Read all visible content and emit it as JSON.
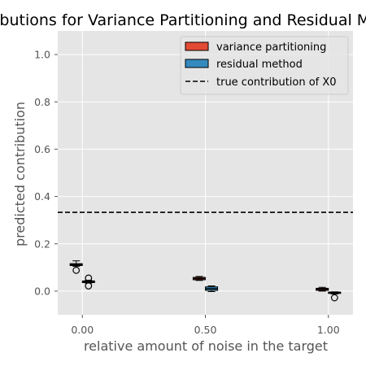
{
  "chart_data": {
    "type": "box",
    "title": "Contributions for Variance Partitioning and Residual Method",
    "xlabel": "relative amount of noise in the target",
    "ylabel": "predicted contribution",
    "xlim": [
      -0.1,
      1.1
    ],
    "ylim": [
      -0.1,
      1.1
    ],
    "x_ticks": [
      0.0,
      0.5,
      1.0
    ],
    "x_tick_labels": [
      "0.00",
      "0.50",
      "1.00"
    ],
    "y_ticks": [
      0.0,
      0.2,
      0.4,
      0.6,
      0.8,
      1.0
    ],
    "y_tick_labels": [
      "0.0",
      "0.2",
      "0.4",
      "0.6",
      "0.8",
      "1.0"
    ],
    "grid": true,
    "legend_position": "top-right",
    "colors": {
      "variance_partitioning": "#E24A33",
      "residual_method": "#348ABD",
      "plot_background": "#E5E5E5",
      "grid": "#FFFFFF"
    },
    "series": [
      {
        "name": "variance partitioning",
        "boxes": [
          {
            "x": 0.0,
            "whislo": 0.105,
            "q1": 0.108,
            "med": 0.112,
            "q3": 0.116,
            "whishi": 0.128,
            "fliers": [
              0.088
            ]
          },
          {
            "x": 0.5,
            "whislo": 0.045,
            "q1": 0.048,
            "med": 0.053,
            "q3": 0.058,
            "whishi": 0.062,
            "fliers": []
          },
          {
            "x": 1.0,
            "whislo": 0.0,
            "q1": 0.003,
            "med": 0.008,
            "q3": 0.012,
            "whishi": 0.016,
            "fliers": []
          }
        ]
      },
      {
        "name": "residual method",
        "boxes": [
          {
            "x": 0.0,
            "whislo": 0.034,
            "q1": 0.036,
            "med": 0.04,
            "q3": 0.043,
            "whishi": 0.046,
            "fliers": [
              0.055,
              0.022
            ]
          },
          {
            "x": 0.5,
            "whislo": -0.002,
            "q1": 0.003,
            "med": 0.01,
            "q3": 0.018,
            "whishi": 0.022,
            "fliers": []
          },
          {
            "x": 1.0,
            "whislo": -0.012,
            "q1": -0.01,
            "med": -0.007,
            "q3": -0.004,
            "whishi": -0.003,
            "fliers": [
              -0.028
            ]
          }
        ]
      }
    ],
    "reference_line": {
      "name": "true contribution of X0",
      "y": 0.333,
      "style": "dashed"
    }
  }
}
